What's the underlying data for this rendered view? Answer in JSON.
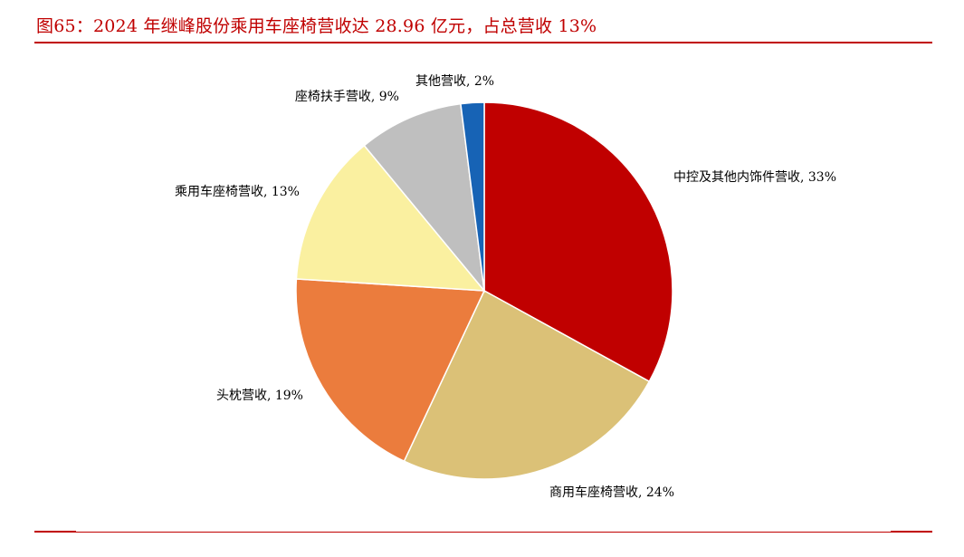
{
  "figure": {
    "title": "图65：2024 年继峰股份乘用车座椅营收达 28.96 亿元，占总营收 13%"
  },
  "colors": {
    "accent": "#c00000"
  },
  "chart_data": {
    "type": "pie",
    "title": "",
    "slices": [
      {
        "label": "中控及其他内饰件营收",
        "value": 33,
        "display": "中控及其他内饰件营收, 33%",
        "color": "#c00000"
      },
      {
        "label": "商用车座椅营收",
        "value": 24,
        "display": "商用车座椅营收, 24%",
        "color": "#dbc177"
      },
      {
        "label": "头枕营收",
        "value": 19,
        "display": "头枕营收, 19%",
        "color": "#eb7c3d"
      },
      {
        "label": "乘用车座椅营收",
        "value": 13,
        "display": "乘用车座椅营收, 13%",
        "color": "#faf0a0"
      },
      {
        "label": "座椅扶手营收",
        "value": 9,
        "display": "座椅扶手营收, 9%",
        "color": "#bfbfbf"
      },
      {
        "label": "其他营收",
        "value": 2,
        "display": "其他营收, 2%",
        "color": "#1763b5"
      }
    ],
    "start_angle": "12 o'clock",
    "direction": "clockwise",
    "legend": "none (data labels outside slices)"
  }
}
